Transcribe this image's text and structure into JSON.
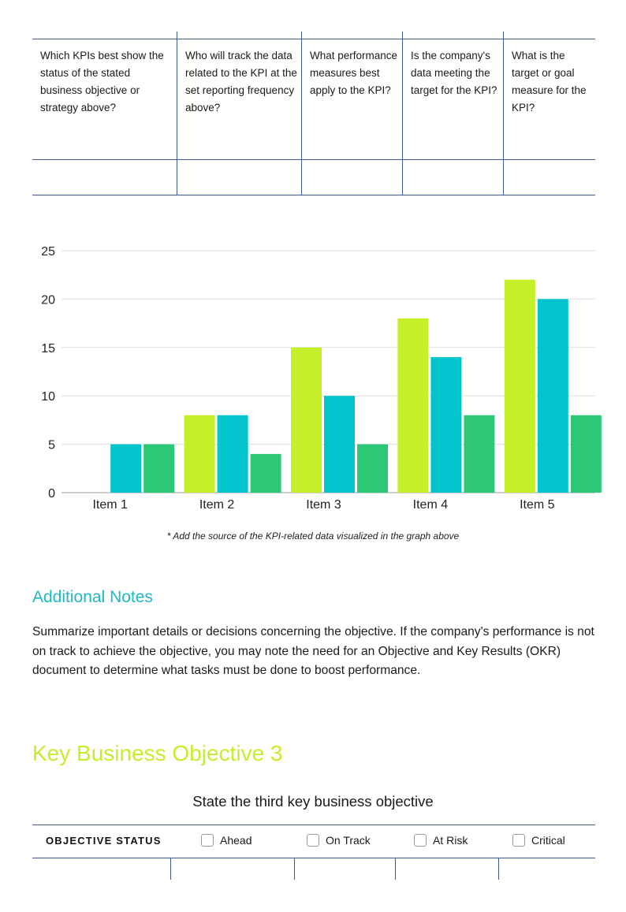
{
  "kpi_table": {
    "columns": [
      "Which KPIs best show the status of the stated business objective or strategy above?",
      "Who will track the data related to the KPI at the set reporting frequency above?",
      "What performance measures best apply to the KPI?",
      "Is the company's data meeting the target for the KPI?",
      "What is the target or goal measure for the KPI?"
    ]
  },
  "chart_data": {
    "type": "bar",
    "categories": [
      "Item 1",
      "Item 2",
      "Item 3",
      "Item 4",
      "Item 5"
    ],
    "series": [
      {
        "values": [
          0,
          8,
          15,
          18,
          22
        ],
        "color": "#c5f029"
      },
      {
        "values": [
          5,
          8,
          10,
          14,
          20
        ],
        "color": "#02c4cc"
      },
      {
        "values": [
          5,
          4,
          5,
          8,
          8
        ],
        "color": "#2cc878"
      }
    ],
    "ylim": [
      0,
      25
    ],
    "yticks": [
      0,
      5,
      10,
      15,
      20,
      25
    ],
    "grid": true
  },
  "chart_note": "* Add the source of the KPI-related data visualized in the graph above",
  "notes": {
    "title": "Additional Notes",
    "body": "Summarize important details or decisions concerning the objective. If the company's performance is not on track to achieve the objective, you may note the need for an Objective and Key Results (OKR) document to determine what tasks must be done to boost performance."
  },
  "objective": {
    "title": "Key Business Objective 3",
    "statement": "State the third key business objective",
    "status_label": "OBJECTIVE STATUS",
    "options": [
      "Ahead",
      "On Track",
      "At Risk",
      "Critical"
    ]
  },
  "colors": {
    "accent_teal": "#1fb8c7",
    "accent_lime": "#c5ee2a",
    "table_line": "#3c5a8a"
  }
}
